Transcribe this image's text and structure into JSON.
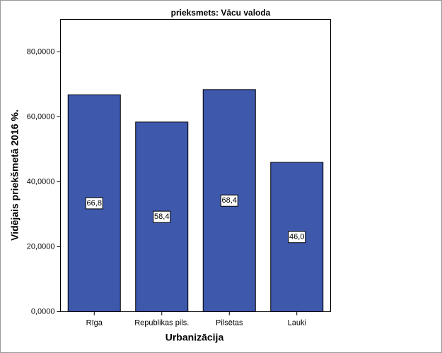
{
  "chart_data": {
    "type": "bar",
    "title": "prieksmets: Vācu valoda",
    "x_label": "Urbanizācija",
    "y_label": "Vidējais priekšmetā 2016 %.",
    "categories": [
      "Rīga",
      "Republikas pils.",
      "Pilsētas",
      "Lauki"
    ],
    "values": [
      66.8,
      58.4,
      68.4,
      46.0
    ],
    "value_labels": [
      "66,8",
      "58,4",
      "68,4",
      "46,0"
    ],
    "color": "#3e58ac",
    "ylim": [
      0,
      90
    ],
    "yticks": [
      {
        "value": 0,
        "label": "0,0000"
      },
      {
        "value": 20,
        "label": "20,0000"
      },
      {
        "value": 40,
        "label": "40,0000"
      },
      {
        "value": 60,
        "label": "60,0000"
      },
      {
        "value": 80,
        "label": "80,0000"
      }
    ]
  }
}
